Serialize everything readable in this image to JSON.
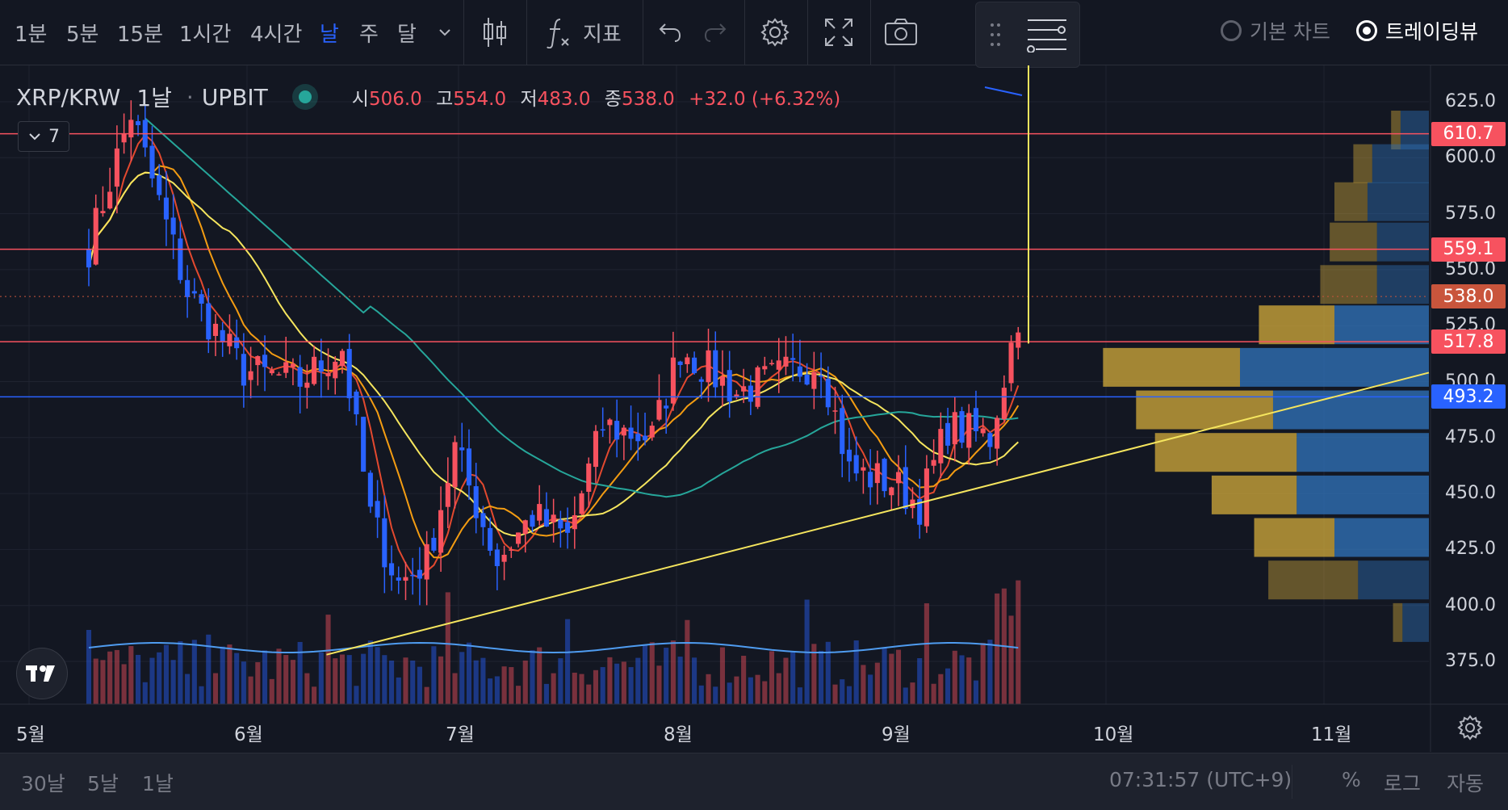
{
  "toolbar": {
    "intervals": [
      {
        "label": "1분"
      },
      {
        "label": "5분"
      },
      {
        "label": "15분"
      },
      {
        "label": "1시간"
      },
      {
        "label": "4시간"
      },
      {
        "label": "날",
        "active": true
      },
      {
        "label": "주"
      },
      {
        "label": "달"
      }
    ],
    "indicators_label": "지표",
    "radio_basic": "기본 차트",
    "radio_tv": "트레이딩뷰"
  },
  "legend": {
    "symbol": "XRP/KRW",
    "interval": "1날",
    "exchange": "UPBIT",
    "open_k": "시",
    "open_v": "506.0",
    "high_k": "고",
    "high_v": "554.0",
    "low_k": "저",
    "low_v": "483.0",
    "close_k": "종",
    "close_v": "538.0",
    "change": "+32.0 (+6.32%)",
    "collapsed_count": "7"
  },
  "price_axis": {
    "ticks": [
      "625.0",
      "600.0",
      "575.0",
      "550.0",
      "525.0",
      "500.0",
      "475.0",
      "450.0",
      "425.0",
      "400.0",
      "375.0"
    ],
    "labels": [
      {
        "value": "610.7",
        "color": "#f7525f"
      },
      {
        "value": "559.1",
        "color": "#f7525f"
      },
      {
        "value": "538.0",
        "color": "#c9553c"
      },
      {
        "value": "517.8",
        "color": "#f7525f"
      },
      {
        "value": "493.2",
        "color": "#2962ff"
      }
    ]
  },
  "time_axis": [
    "5월",
    "6월",
    "7월",
    "8월",
    "9월",
    "10월",
    "11월"
  ],
  "bottom": {
    "ranges": [
      "30날",
      "5날",
      "1날"
    ],
    "clock": "07:31:57 (UTC+9)",
    "percent": "%",
    "log": "로그",
    "auto": "자동"
  },
  "colors": {
    "up": "#f7525f",
    "down": "#2962ff",
    "bg": "#131722",
    "hline_red": "#f7525f",
    "hline_blue": "#2962ff",
    "trendline": "#f5e55e",
    "ma_short": "#e3492f",
    "ma_mid": "#f39c12",
    "ma_long": "#f5e55e",
    "ma_slow": "#26a69a"
  },
  "chart_data": {
    "type": "candlestick",
    "symbol": "XRP/KRW",
    "x": [
      "5월",
      "6월",
      "7월",
      "8월",
      "9월"
    ],
    "ylim": [
      360,
      640
    ],
    "horizontal_levels": [
      610.7,
      559.1,
      517.8,
      493.2
    ],
    "last_close": 538.0,
    "trendline": [
      [
        0.378,
        0.376
      ],
      [
        1.0,
        0.505
      ]
    ],
    "volume_profile": [
      {
        "price": 612,
        "buy": 0.1,
        "sell": 0.3
      },
      {
        "price": 597,
        "buy": 0.2,
        "sell": 0.6
      },
      {
        "price": 580,
        "buy": 0.35,
        "sell": 0.65
      },
      {
        "price": 562,
        "buy": 0.5,
        "sell": 0.55
      },
      {
        "price": 543,
        "buy": 0.6,
        "sell": 0.55
      },
      {
        "price": 525,
        "buy": 0.8,
        "sell": 1.0
      },
      {
        "price": 506,
        "buy": 1.45,
        "sell": 2.0
      },
      {
        "price": 487,
        "buy": 1.45,
        "sell": 1.65
      },
      {
        "price": 468,
        "buy": 1.5,
        "sell": 1.4
      },
      {
        "price": 449,
        "buy": 0.9,
        "sell": 1.4
      },
      {
        "price": 430,
        "buy": 0.85,
        "sell": 1.0
      },
      {
        "price": 411,
        "buy": 0.95,
        "sell": 0.75
      },
      {
        "price": 392,
        "buy": 0.1,
        "sell": 0.28
      }
    ]
  }
}
